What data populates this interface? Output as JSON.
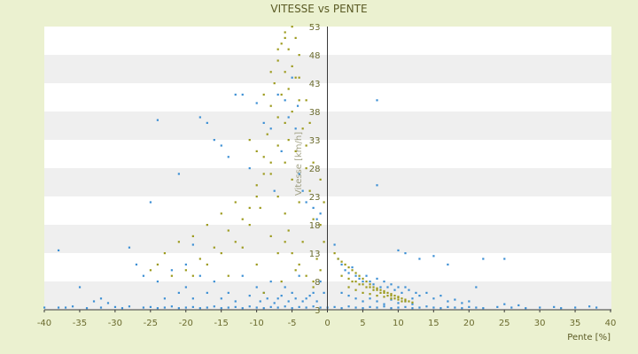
{
  "chart_data": {
    "type": "scatter",
    "title": "VITESSE vs PENTE",
    "xlabel": "Pente [%]",
    "ylabel": "Vitesse [km/h]",
    "xlim": [
      -40,
      40
    ],
    "ylim": [
      3,
      53
    ],
    "x_ticks": [
      -40,
      -35,
      -30,
      -25,
      -20,
      -15,
      -10,
      -5,
      0,
      5,
      10,
      15,
      20,
      25,
      30,
      35,
      40
    ],
    "y_ticks": [
      3,
      8,
      13,
      18,
      23,
      28,
      33,
      38,
      43,
      48,
      53
    ],
    "grid": "horizontal alternating bands",
    "colors": {
      "background": "#EBF1D0",
      "band_light": "#FFFFFF",
      "band_dark": "#EFEFEF",
      "series_blue": "#3C8FD4",
      "series_olive": "#9C9A1C",
      "text": "#6B6B2E"
    },
    "series": [
      {
        "color": "#3C8FD4",
        "marker": "dot",
        "points": [
          [
            -40,
            3.4
          ],
          [
            -38,
            3.4
          ],
          [
            -37,
            3.4
          ],
          [
            -36,
            3.6
          ],
          [
            -34,
            3.3
          ],
          [
            -32,
            3.4
          ],
          [
            -30,
            3.5
          ],
          [
            -29,
            3.3
          ],
          [
            -28,
            3.6
          ],
          [
            -26,
            3.4
          ],
          [
            -25,
            3.5
          ],
          [
            -24,
            3.3
          ],
          [
            -23,
            3.4
          ],
          [
            -22,
            3.6
          ],
          [
            -21,
            3.3
          ],
          [
            -20,
            3.4
          ],
          [
            -19,
            3.5
          ],
          [
            -18,
            3.3
          ],
          [
            -17,
            3.4
          ],
          [
            -16,
            3.6
          ],
          [
            -15,
            3.3
          ],
          [
            -14,
            3.4
          ],
          [
            -13,
            3.5
          ],
          [
            -12,
            3.3
          ],
          [
            -11,
            3.6
          ],
          [
            -10,
            3.4
          ],
          [
            -9,
            3.3
          ],
          [
            -8,
            3.5
          ],
          [
            -7,
            3.4
          ],
          [
            -6,
            3.6
          ],
          [
            -5,
            3.3
          ],
          [
            -4,
            3.5
          ],
          [
            -3,
            3.4
          ],
          [
            -2,
            3.6
          ],
          [
            -1,
            3.4
          ],
          [
            0,
            3.4
          ],
          [
            1,
            3.5
          ],
          [
            2,
            3.3
          ],
          [
            3,
            3.6
          ],
          [
            4,
            3.4
          ],
          [
            5,
            3.3
          ],
          [
            6,
            3.5
          ],
          [
            7,
            3.4
          ],
          [
            8,
            3.6
          ],
          [
            9,
            3.3
          ],
          [
            10,
            3.4
          ],
          [
            11,
            3.5
          ],
          [
            12,
            3.3
          ],
          [
            13,
            3.4
          ],
          [
            14,
            3.6
          ],
          [
            15,
            3.4
          ],
          [
            16,
            3.3
          ],
          [
            17,
            3.5
          ],
          [
            18,
            3.4
          ],
          [
            19,
            3.3
          ],
          [
            20,
            3.5
          ],
          [
            21,
            3.4
          ],
          [
            22,
            3.3
          ],
          [
            24,
            3.5
          ],
          [
            26,
            3.4
          ],
          [
            28,
            3.3
          ],
          [
            30,
            3.4
          ],
          [
            32,
            3.5
          ],
          [
            33,
            3.3
          ],
          [
            35,
            3.4
          ],
          [
            37,
            3.6
          ],
          [
            38,
            3.4
          ],
          [
            -38,
            13.5
          ],
          [
            -35,
            7
          ],
          [
            -33,
            4.5
          ],
          [
            -32,
            5
          ],
          [
            -31,
            4.2
          ],
          [
            -28,
            14
          ],
          [
            -27,
            11
          ],
          [
            -25,
            22
          ],
          [
            -24,
            36.5
          ],
          [
            -21,
            27
          ],
          [
            -20,
            11
          ],
          [
            -19,
            14.5
          ],
          [
            -18,
            37
          ],
          [
            -17,
            36
          ],
          [
            -16,
            33
          ],
          [
            -15,
            32
          ],
          [
            -14,
            30
          ],
          [
            -13,
            41
          ],
          [
            -12,
            41
          ],
          [
            -11,
            28
          ],
          [
            -10,
            39.5
          ],
          [
            -9,
            36
          ],
          [
            -8,
            35
          ],
          [
            -7.5,
            24
          ],
          [
            -6.5,
            31
          ],
          [
            -5.5,
            37
          ],
          [
            -4.5,
            35
          ],
          [
            -4,
            27
          ],
          [
            -3.5,
            24
          ],
          [
            -3,
            22
          ],
          [
            -2,
            21
          ],
          [
            -1.5,
            19
          ],
          [
            -1,
            20
          ],
          [
            -6,
            40
          ],
          [
            -5,
            44
          ],
          [
            -7,
            41
          ],
          [
            -4.2,
            39
          ],
          [
            -26,
            9
          ],
          [
            -24,
            8
          ],
          [
            -22,
            10
          ],
          [
            -20,
            7
          ],
          [
            -18,
            9
          ],
          [
            -16,
            8
          ],
          [
            -14,
            6
          ],
          [
            -12,
            9
          ],
          [
            -10,
            7
          ],
          [
            -9,
            6
          ],
          [
            -8,
            8
          ],
          [
            -7,
            5
          ],
          [
            -6,
            7
          ],
          [
            -5,
            6
          ],
          [
            -4,
            9
          ],
          [
            -3,
            5
          ],
          [
            -2,
            6
          ],
          [
            -1,
            8
          ],
          [
            -23,
            5
          ],
          [
            -21,
            6
          ],
          [
            -19,
            5
          ],
          [
            -17,
            6
          ],
          [
            -15,
            5
          ],
          [
            -13,
            4.5
          ],
          [
            -11,
            5.5
          ],
          [
            -9.5,
            4.5
          ],
          [
            -8.5,
            5
          ],
          [
            -7.5,
            4.2
          ],
          [
            -6.5,
            5.5
          ],
          [
            -5.5,
            4.5
          ],
          [
            -4.5,
            5
          ],
          [
            -3.5,
            4.5
          ],
          [
            -2.5,
            5.5
          ],
          [
            -1.5,
            4.5
          ],
          [
            -0.5,
            6
          ],
          [
            1,
            14.5
          ],
          [
            1.5,
            12
          ],
          [
            2,
            11
          ],
          [
            2.5,
            10
          ],
          [
            3,
            9.5
          ],
          [
            3.5,
            10.5
          ],
          [
            4,
            9
          ],
          [
            4.5,
            8.5
          ],
          [
            5,
            8
          ],
          [
            5.5,
            9
          ],
          [
            6,
            8
          ],
          [
            6.5,
            7.5
          ],
          [
            7,
            8.5
          ],
          [
            7.5,
            7
          ],
          [
            8,
            8
          ],
          [
            8.5,
            7
          ],
          [
            9,
            7.5
          ],
          [
            9.5,
            6.5
          ],
          [
            10,
            7
          ],
          [
            10.5,
            6
          ],
          [
            11,
            7
          ],
          [
            11.5,
            6.5
          ],
          [
            12,
            5
          ],
          [
            12.5,
            6
          ],
          [
            13,
            5.5
          ],
          [
            14,
            6
          ],
          [
            15,
            5
          ],
          [
            16,
            5.5
          ],
          [
            17,
            4.5
          ],
          [
            18,
            4.8
          ],
          [
            19,
            4.2
          ],
          [
            20,
            4.5
          ],
          [
            2,
            6
          ],
          [
            3,
            5.5
          ],
          [
            4,
            5
          ],
          [
            5,
            4.5
          ],
          [
            6,
            5
          ],
          [
            7,
            4.5
          ],
          [
            8,
            4
          ],
          [
            9,
            4.8
          ],
          [
            10,
            4.2
          ],
          [
            11,
            4.5
          ],
          [
            12,
            4
          ],
          [
            7,
            40
          ],
          [
            7,
            25
          ],
          [
            10,
            13.5
          ],
          [
            11,
            13
          ],
          [
            13,
            12
          ],
          [
            15,
            12.5
          ],
          [
            17,
            11
          ],
          [
            21,
            7
          ],
          [
            22,
            12
          ],
          [
            25,
            12
          ],
          [
            25,
            4
          ],
          [
            27,
            3.8
          ]
        ]
      },
      {
        "color": "#9C9A1C",
        "marker": "dot",
        "points": [
          [
            -5,
            53
          ],
          [
            -6,
            52
          ],
          [
            -4.5,
            51
          ],
          [
            -6.5,
            50
          ],
          [
            -5.5,
            49
          ],
          [
            -4,
            48
          ],
          [
            -7,
            47
          ],
          [
            -5,
            46
          ],
          [
            -6,
            45
          ],
          [
            -4.5,
            44
          ],
          [
            -7.5,
            43
          ],
          [
            -5.5,
            42
          ],
          [
            -6.5,
            41
          ],
          [
            -4,
            40
          ],
          [
            -8,
            39
          ],
          [
            -5,
            38
          ],
          [
            -7,
            37
          ],
          [
            -6,
            36
          ],
          [
            -3.5,
            35
          ],
          [
            -8.5,
            34
          ],
          [
            -5.5,
            33
          ],
          [
            -7,
            32
          ],
          [
            -4.5,
            31
          ],
          [
            -9,
            30
          ],
          [
            -6,
            29
          ],
          [
            -3,
            28
          ],
          [
            -8,
            27
          ],
          [
            -5,
            26
          ],
          [
            -10,
            25
          ],
          [
            -2.5,
            24
          ],
          [
            -7,
            23
          ],
          [
            -4,
            22
          ],
          [
            -9.5,
            21
          ],
          [
            -6,
            20
          ],
          [
            -2,
            19
          ],
          [
            -11,
            18
          ],
          [
            -5.5,
            17
          ],
          [
            -8,
            16
          ],
          [
            -3.5,
            15
          ],
          [
            -12,
            14
          ],
          [
            -7,
            13
          ],
          [
            -1.5,
            12
          ],
          [
            -10,
            11
          ],
          [
            -4.5,
            10
          ],
          [
            -14,
            9
          ],
          [
            -6.5,
            8
          ],
          [
            -2,
            7
          ],
          [
            -9,
            6
          ],
          [
            -13,
            22
          ],
          [
            -15,
            20
          ],
          [
            -17,
            18
          ],
          [
            -19,
            16
          ],
          [
            -21,
            15
          ],
          [
            -23,
            13
          ],
          [
            -16,
            14
          ],
          [
            -18,
            12
          ],
          [
            -20,
            10
          ],
          [
            -22,
            9
          ],
          [
            -24,
            11
          ],
          [
            -25,
            10
          ],
          [
            -14,
            17
          ],
          [
            -12,
            19
          ],
          [
            -11,
            21
          ],
          [
            -10,
            23
          ],
          [
            -13,
            15
          ],
          [
            -15,
            13
          ],
          [
            -17,
            11
          ],
          [
            -19,
            9
          ],
          [
            -9,
            27
          ],
          [
            -8,
            29
          ],
          [
            -10,
            31
          ],
          [
            -11,
            33
          ],
          [
            -9,
            41
          ],
          [
            -8,
            45
          ],
          [
            -7,
            49
          ],
          [
            -6,
            51
          ],
          [
            -4,
            44
          ],
          [
            -3,
            40
          ],
          [
            -2.5,
            36
          ],
          [
            -3,
            32
          ],
          [
            -2,
            29
          ],
          [
            -1,
            26
          ],
          [
            -0.5,
            22
          ],
          [
            -1,
            18
          ],
          [
            -0.5,
            15
          ],
          [
            1,
            13
          ],
          [
            1.5,
            12
          ],
          [
            2,
            11.5
          ],
          [
            2.5,
            11
          ],
          [
            3,
            10.5
          ],
          [
            3.5,
            10
          ],
          [
            4,
            9.5
          ],
          [
            4.5,
            9
          ],
          [
            5,
            8.5
          ],
          [
            5.5,
            8
          ],
          [
            6,
            7.5
          ],
          [
            6.5,
            7
          ],
          [
            7,
            6.8
          ],
          [
            7.5,
            6.5
          ],
          [
            8,
            6.3
          ],
          [
            8.5,
            6
          ],
          [
            9,
            5.8
          ],
          [
            9.5,
            5.5
          ],
          [
            10,
            5.3
          ],
          [
            10.5,
            5
          ],
          [
            11,
            4.8
          ],
          [
            11.5,
            4.5
          ],
          [
            12,
            4.3
          ],
          [
            3,
            7
          ],
          [
            4,
            6.5
          ],
          [
            5,
            6
          ],
          [
            6,
            5.8
          ],
          [
            7,
            5.5
          ],
          [
            8,
            5.3
          ],
          [
            9,
            5
          ],
          [
            10,
            4.8
          ],
          [
            11,
            4.5
          ],
          [
            3.5,
            8
          ],
          [
            4.5,
            7.5
          ],
          [
            5.5,
            7
          ],
          [
            6.5,
            6.5
          ],
          [
            7.5,
            6
          ],
          [
            8.5,
            5.5
          ],
          [
            9.5,
            5
          ],
          [
            10.5,
            4.5
          ],
          [
            2,
            9
          ],
          [
            3,
            8.5
          ],
          [
            4,
            8
          ],
          [
            5,
            7.5
          ],
          [
            6,
            7
          ],
          [
            7,
            6.5
          ],
          [
            8,
            6
          ],
          [
            9,
            5.5
          ],
          [
            10,
            5.2
          ],
          [
            -3,
            9
          ],
          [
            -4,
            11
          ],
          [
            -5,
            13
          ],
          [
            -6,
            15
          ],
          [
            -2,
            8
          ],
          [
            -1,
            10
          ]
        ]
      }
    ]
  }
}
